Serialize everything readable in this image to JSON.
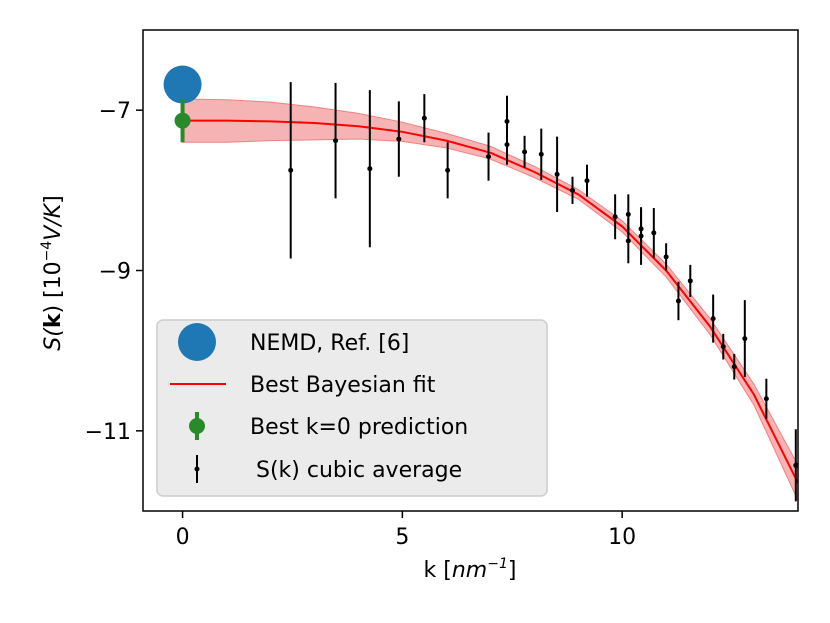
{
  "chart_data": {
    "type": "scatter",
    "xlabel_prefix": "k [",
    "xlabel_unit": "nm",
    "xlabel_exp": "−1",
    "xlabel_suffix": "]",
    "ylabel_prefix": "S(",
    "ylabel_bold": "k",
    "ylabel_mid": ") [10",
    "ylabel_exp": "−4",
    "ylabel_unit": "V/K",
    "ylabel_suffix": "]",
    "xlim": [
      -0.9,
      14.0
    ],
    "ylim": [
      -12.0,
      -6.0
    ],
    "xticks": [
      0,
      5,
      10
    ],
    "yticks": [
      -11,
      -9,
      -7
    ],
    "xtick_labels": [
      "0",
      "5",
      "10"
    ],
    "ytick_labels": [
      "−11",
      "−9",
      "−7"
    ],
    "legend_position": "lower-left",
    "colors": {
      "nemd": "#1f77b4",
      "fit": "#ff0000",
      "band": "#f4a6a6",
      "prediction": "#2a8a2a",
      "average": "#000000"
    },
    "series": [
      {
        "name": "NEMD, Ref. [6]",
        "kind": "big-marker",
        "points": [
          {
            "x": 0.0,
            "y": -6.68
          }
        ]
      },
      {
        "name": "Best Bayesian fit",
        "kind": "line-with-band",
        "x": [
          0,
          1,
          2,
          3,
          4,
          5,
          6,
          7,
          8,
          9,
          10,
          11,
          12,
          13,
          14
        ],
        "y": [
          -7.13,
          -7.13,
          -7.14,
          -7.16,
          -7.2,
          -7.27,
          -7.38,
          -7.53,
          -7.77,
          -8.05,
          -8.45,
          -9.0,
          -9.7,
          -10.55,
          -11.65
        ],
        "lower": [
          -7.4,
          -7.4,
          -7.38,
          -7.37,
          -7.36,
          -7.39,
          -7.47,
          -7.61,
          -7.84,
          -8.11,
          -8.52,
          -9.08,
          -9.8,
          -10.68,
          -11.87
        ],
        "upper": [
          -6.86,
          -6.87,
          -6.9,
          -6.96,
          -7.04,
          -7.15,
          -7.29,
          -7.45,
          -7.7,
          -7.99,
          -8.38,
          -8.92,
          -9.6,
          -10.42,
          -11.43
        ]
      },
      {
        "name": "Best k=0 prediction",
        "kind": "errorbar",
        "points": [
          {
            "x": 0.0,
            "y": -7.13,
            "err": 0.27
          }
        ]
      },
      {
        "name": "S(k) cubic average",
        "kind": "errorbar",
        "points": [
          {
            "x": 2.46,
            "y": -7.75,
            "err": 1.1
          },
          {
            "x": 3.48,
            "y": -7.38,
            "err": 0.72
          },
          {
            "x": 4.26,
            "y": -7.73,
            "err": 0.98
          },
          {
            "x": 4.92,
            "y": -7.36,
            "err": 0.47
          },
          {
            "x": 5.5,
            "y": -7.1,
            "err": 0.3
          },
          {
            "x": 6.03,
            "y": -7.75,
            "err": 0.35
          },
          {
            "x": 6.96,
            "y": -7.58,
            "err": 0.3
          },
          {
            "x": 7.38,
            "y": -7.14,
            "err": 0.32
          },
          {
            "x": 7.38,
            "y": -7.43,
            "err": 0.25
          },
          {
            "x": 7.78,
            "y": -7.52,
            "err": 0.2
          },
          {
            "x": 8.16,
            "y": -7.55,
            "err": 0.32
          },
          {
            "x": 8.52,
            "y": -7.8,
            "err": 0.47
          },
          {
            "x": 8.87,
            "y": -8.0,
            "err": 0.17
          },
          {
            "x": 9.2,
            "y": -7.88,
            "err": 0.2
          },
          {
            "x": 9.84,
            "y": -8.33,
            "err": 0.28
          },
          {
            "x": 10.14,
            "y": -8.3,
            "err": 0.25
          },
          {
            "x": 10.14,
            "y": -8.63,
            "err": 0.28
          },
          {
            "x": 10.43,
            "y": -8.48,
            "err": 0.25
          },
          {
            "x": 10.43,
            "y": -8.57,
            "err": 0.36
          },
          {
            "x": 10.72,
            "y": -8.53,
            "err": 0.31
          },
          {
            "x": 11.0,
            "y": -8.83,
            "err": 0.17
          },
          {
            "x": 11.28,
            "y": -9.38,
            "err": 0.24
          },
          {
            "x": 11.55,
            "y": -9.13,
            "err": 0.2
          },
          {
            "x": 12.07,
            "y": -9.6,
            "err": 0.3
          },
          {
            "x": 12.3,
            "y": -9.95,
            "err": 0.16
          },
          {
            "x": 12.55,
            "y": -10.2,
            "err": 0.16
          },
          {
            "x": 12.79,
            "y": -9.85,
            "err": 0.48
          },
          {
            "x": 13.28,
            "y": -10.6,
            "err": 0.25
          },
          {
            "x": 13.95,
            "y": -11.43,
            "err": 0.45
          }
        ]
      }
    ]
  }
}
